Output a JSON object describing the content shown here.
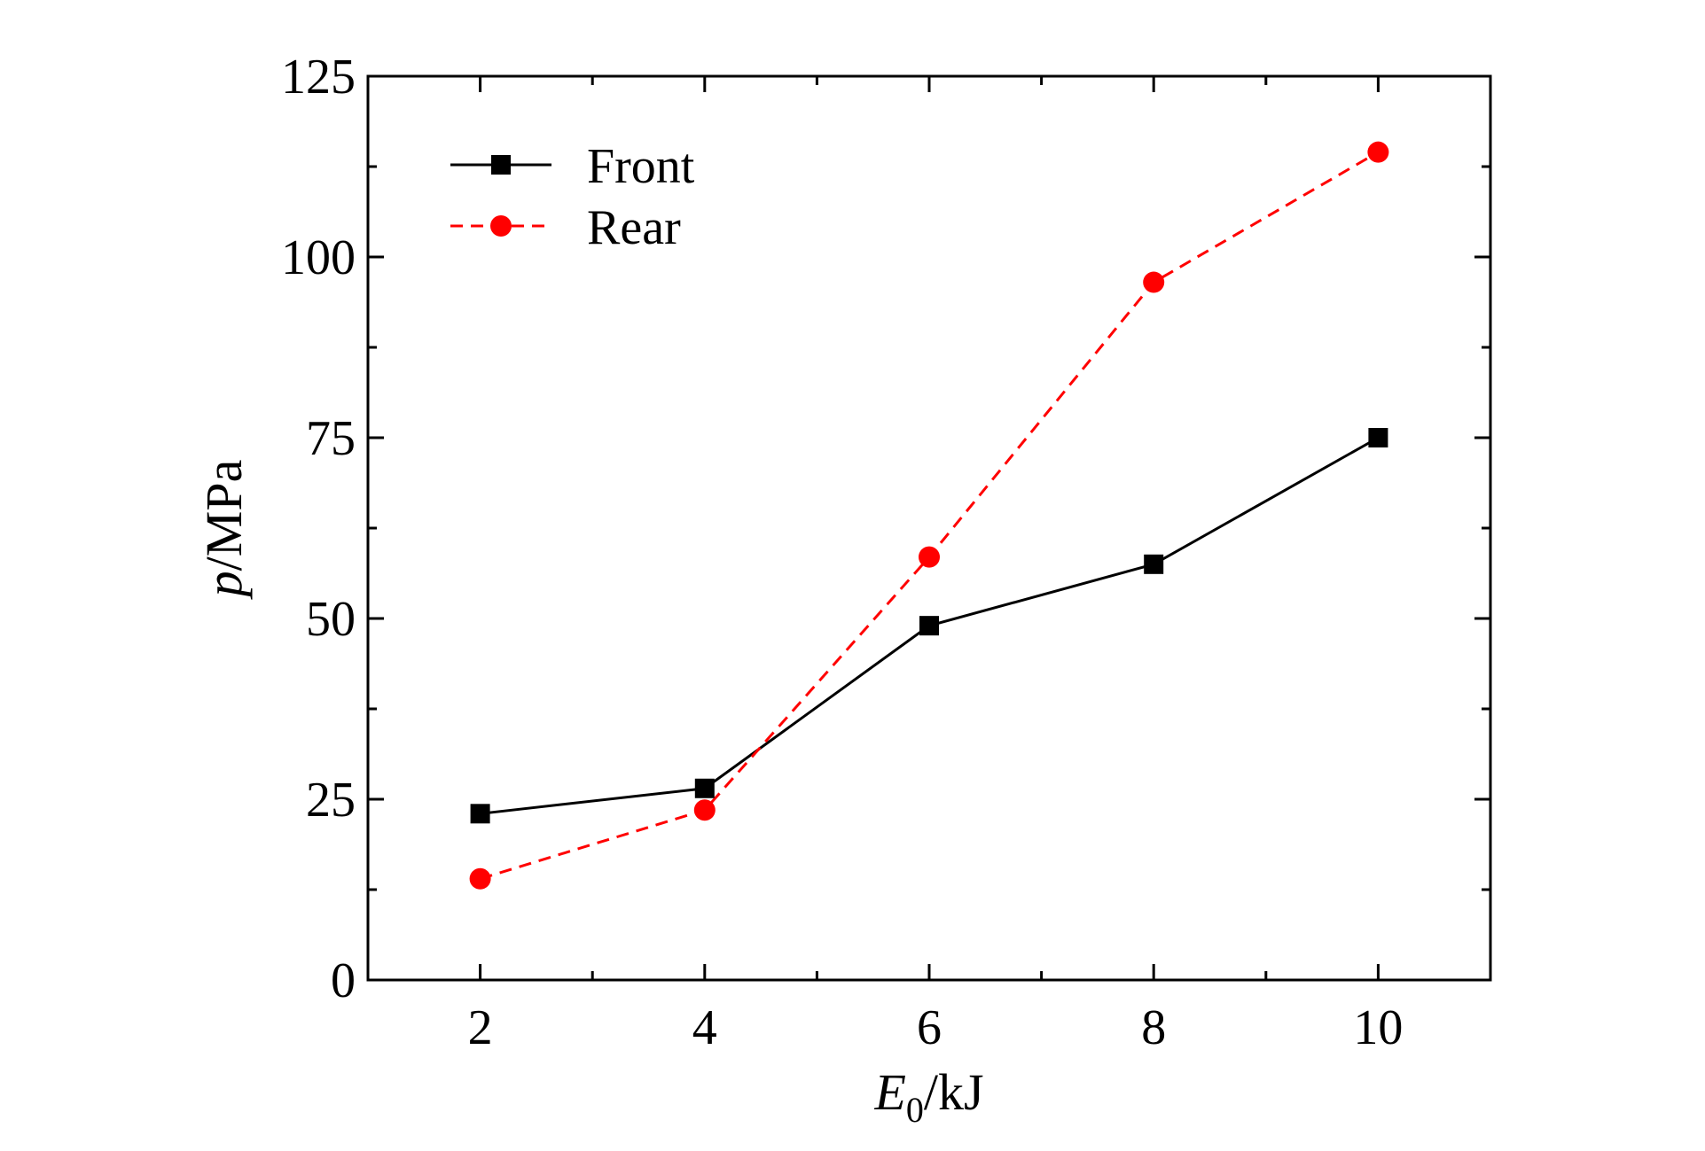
{
  "chart_data": {
    "type": "line",
    "xlabel": {
      "var": "E",
      "sub": "0",
      "unit": "/kJ"
    },
    "ylabel": {
      "var": "p",
      "unit": "/MPa"
    },
    "xlim": [
      1,
      11
    ],
    "ylim": [
      0,
      125
    ],
    "x_ticks": [
      "2",
      "4",
      "6",
      "8",
      "10"
    ],
    "x_tick_values": [
      2,
      4,
      6,
      8,
      10
    ],
    "x_minor_ticks": [
      3,
      5,
      7,
      9
    ],
    "y_ticks": [
      "0",
      "25",
      "50",
      "75",
      "100",
      "125"
    ],
    "y_tick_values": [
      0,
      25,
      50,
      75,
      100,
      125
    ],
    "y_minor_ticks": [
      12.5,
      37.5,
      62.5,
      87.5,
      112.5
    ],
    "grid": false,
    "legend_position": "top-left",
    "x": [
      2,
      4,
      6,
      8,
      10
    ],
    "series": [
      {
        "name": "Front",
        "values": [
          23,
          26.5,
          49,
          57.5,
          75
        ],
        "color": "#000000",
        "marker": "square",
        "line": "solid"
      },
      {
        "name": "Rear",
        "values": [
          14,
          23.5,
          58.5,
          96.5,
          114.5
        ],
        "color": "#ff0000",
        "marker": "circle",
        "line": "dashed"
      }
    ]
  }
}
